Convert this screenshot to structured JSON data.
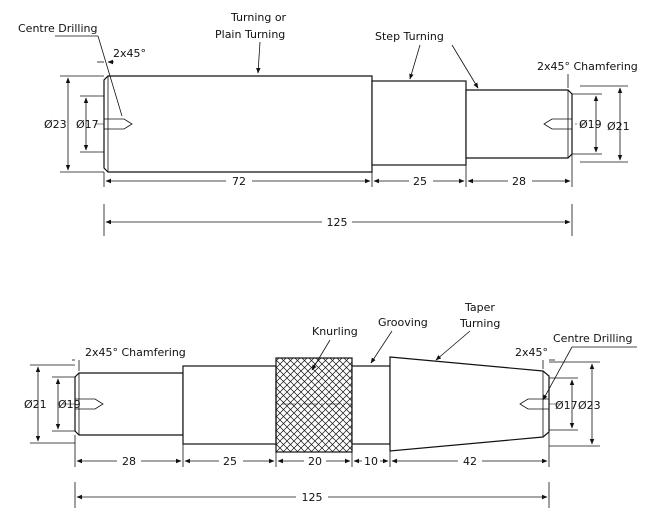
{
  "top_drawing": {
    "labels": {
      "centre_drilling": "Centre Drilling",
      "turning_line1": "Turning or",
      "turning_line2": "Plain Turning",
      "step_turning": "Step Turning",
      "chamfer_left": "2x45°",
      "chamfer_right": "2x45° Chamfering"
    },
    "diameters": {
      "d23": "Ø23",
      "d17": "Ø17",
      "d19": "Ø19",
      "d21": "Ø21"
    },
    "lengths": {
      "l72": "72",
      "l25": "25",
      "l28": "28",
      "total": "125"
    }
  },
  "bottom_drawing": {
    "labels": {
      "chamfering": "2x45° Chamfering",
      "knurling": "Knurling",
      "grooving": "Grooving",
      "taper_line1": "Taper",
      "taper_line2": "Turning",
      "centre_drilling": "Centre Drilling",
      "chamfer_right": "2x45°"
    },
    "diameters": {
      "d21": "Ø21",
      "d19": "Ø19",
      "d17": "Ø17",
      "d23": "Ø23"
    },
    "lengths": {
      "l28": "28",
      "l25": "25",
      "l20": "20",
      "l10": "10",
      "l42": "42",
      "total": "125"
    }
  }
}
